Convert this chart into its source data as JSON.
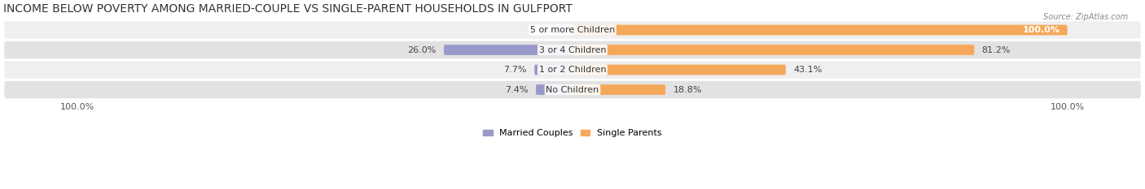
{
  "title": "INCOME BELOW POVERTY AMONG MARRIED-COUPLE VS SINGLE-PARENT HOUSEHOLDS IN GULFPORT",
  "source": "Source: ZipAtlas.com",
  "categories": [
    "No Children",
    "1 or 2 Children",
    "3 or 4 Children",
    "5 or more Children"
  ],
  "married_values": [
    7.4,
    7.7,
    26.0,
    0.0
  ],
  "single_values": [
    18.8,
    43.1,
    81.2,
    100.0
  ],
  "married_color": "#9999cc",
  "single_color": "#f5a85a",
  "axis_max": 100.0,
  "legend_labels": [
    "Married Couples",
    "Single Parents"
  ],
  "title_fontsize": 10,
  "label_fontsize": 8,
  "tick_fontsize": 8,
  "bar_height": 0.52,
  "figsize": [
    14.06,
    2.33
  ],
  "dpi": 100,
  "row_colors": [
    "#efefef",
    "#e2e2e2"
  ]
}
